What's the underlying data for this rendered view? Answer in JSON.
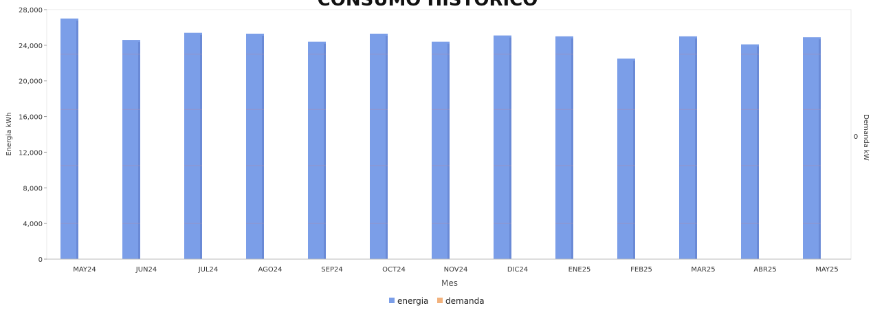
{
  "chart_data": {
    "type": "bar",
    "title": "CONSUMO HISTÓRICO",
    "xlabel": "Mes",
    "ylabel": "Energia kWh",
    "ylabel_right": "Demanda kW",
    "right_axis_tick": "0",
    "categories": [
      "MAY24",
      "JUN24",
      "JUL24",
      "AGO24",
      "SEP24",
      "OCT24",
      "NOV24",
      "DIC24",
      "ENE25",
      "FEB25",
      "MAR25",
      "ABR25",
      "MAY25"
    ],
    "ylim": [
      0,
      28000
    ],
    "yticks": [
      {
        "value": 0,
        "label": "0"
      },
      {
        "value": 4000,
        "label": "4,000"
      },
      {
        "value": 8000,
        "label": "8,000"
      },
      {
        "value": 12000,
        "label": "12,000"
      },
      {
        "value": 16000,
        "label": "16,000"
      },
      {
        "value": 20000,
        "label": "20,000"
      },
      {
        "value": 24000,
        "label": "24,000"
      },
      {
        "value": 28000,
        "label": "28,000"
      }
    ],
    "series": [
      {
        "name": "energia",
        "color": "#7b9ee8",
        "values": [
          27000,
          24600,
          25400,
          25300,
          24400,
          25300,
          24400,
          25100,
          25000,
          22500,
          25000,
          24100,
          24900
        ]
      },
      {
        "name": "demanda",
        "color": "#f2b27d",
        "values": [
          0,
          0,
          0,
          0,
          0,
          0,
          0,
          0,
          0,
          0,
          0,
          0,
          0
        ]
      }
    ],
    "legend_position": "bottom",
    "grid": false
  }
}
